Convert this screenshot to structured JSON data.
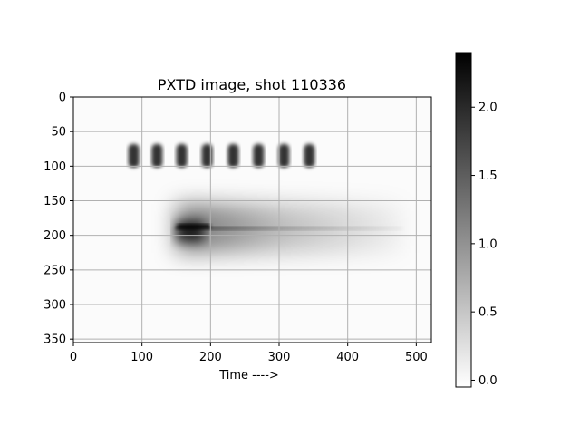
{
  "chart_data": {
    "type": "heatmap",
    "title": "PXTD image, shot 110336",
    "xlabel": "Time ---->",
    "ylabel": "",
    "xlim": [
      0,
      522
    ],
    "ylim": [
      355,
      0
    ],
    "grid": true,
    "x_ticks": [
      "0",
      "100",
      "200",
      "300",
      "400",
      "500"
    ],
    "y_ticks": [
      "0",
      "50",
      "100",
      "150",
      "200",
      "250",
      "300",
      "350"
    ],
    "colormap": "gray_r",
    "colorbar": {
      "range": [
        -0.05,
        2.4
      ],
      "ticks": [
        "0.0",
        "0.5",
        "1.0",
        "1.5",
        "2.0"
      ],
      "placement": "right"
    },
    "features": [
      {
        "name": "fiducial-spots",
        "y": 85,
        "x": [
          88,
          122,
          158,
          195,
          233,
          270,
          307,
          344
        ],
        "intensity": 1.9
      },
      {
        "name": "streak-core",
        "y": 185,
        "x_start": 150,
        "x_end": 190,
        "intensity": 2.3
      },
      {
        "name": "streak-tail",
        "y_range": [
          155,
          225
        ],
        "x_start": 150,
        "x_end": 480,
        "intensity": 0.5
      }
    ]
  }
}
